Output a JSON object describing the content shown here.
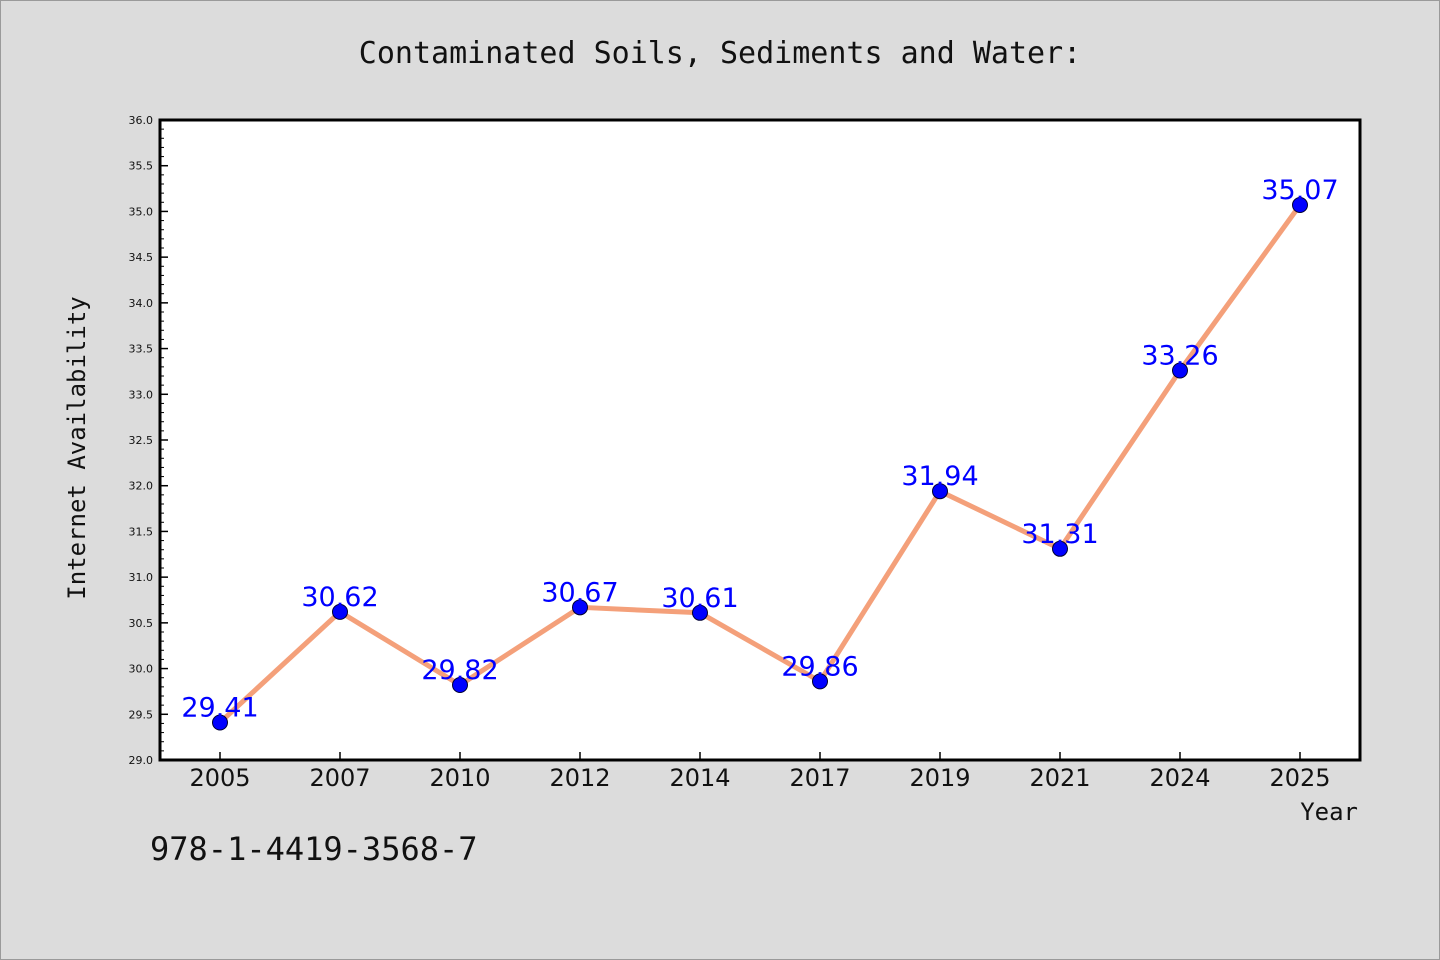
{
  "chart_data": {
    "type": "line",
    "title": "Contaminated Soils, Sediments and Water:",
    "xlabel": "Year",
    "ylabel": "Internet Availability",
    "categories": [
      "2005",
      "2007",
      "2010",
      "2012",
      "2014",
      "2017",
      "2019",
      "2021",
      "2024",
      "2025"
    ],
    "values": [
      29.41,
      30.62,
      29.82,
      30.67,
      30.61,
      29.86,
      31.94,
      31.31,
      33.26,
      35.07
    ],
    "data_labels": [
      "29.41",
      "30.62",
      "29.82",
      "30.67",
      "30.61",
      "29.86",
      "31.94",
      "31.31",
      "33.26",
      "35.07"
    ],
    "ylim": [
      29.0,
      36.0
    ],
    "yticks": [
      "29.0",
      "29.5",
      "30.0",
      "30.5",
      "31.0",
      "31.5",
      "32.0",
      "32.5",
      "33.0",
      "33.5",
      "34.0",
      "34.5",
      "35.0",
      "35.5",
      "36.0"
    ],
    "grid": false,
    "colors": {
      "line": "#f4a07a",
      "marker": "#0000ff",
      "marker_edge": "#000033",
      "label": "#0000ff",
      "plot_background": "#ffffff",
      "page_background": "#dcdcdc"
    }
  },
  "footer": {
    "isbn": "978-1-4419-3568-7"
  }
}
